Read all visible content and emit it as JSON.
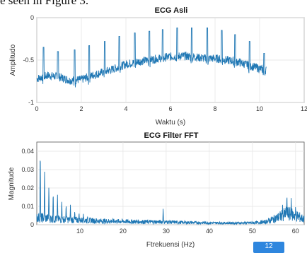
{
  "caption_fragment": "e seen in Figure 3.",
  "page_badge": "12",
  "chart_data": [
    {
      "type": "line",
      "title": "ECG Asli",
      "xlabel": "Waktu (s)",
      "ylabel": "Amplitudo",
      "xlim": [
        0,
        12
      ],
      "ylim": [
        -1,
        0
      ],
      "xticks": [
        0,
        2,
        4,
        6,
        8,
        10,
        12
      ],
      "yticks": [
        -1,
        -0.5,
        0
      ],
      "ytick_labels": [
        "-1",
        "-0.5",
        "0"
      ],
      "grid": true,
      "color": "#1f77b4",
      "series": [
        {
          "x_range": [
            0,
            10.3
          ],
          "baseline_x": [
            0,
            0.5,
            1,
            1.5,
            2,
            2.5,
            3,
            3.5,
            4,
            4.5,
            5,
            5.5,
            6,
            6.5,
            7,
            7.5,
            8,
            8.5,
            9,
            9.5,
            10,
            10.3
          ],
          "baseline_y": [
            -0.72,
            -0.68,
            -0.7,
            -0.74,
            -0.73,
            -0.68,
            -0.64,
            -0.6,
            -0.55,
            -0.52,
            -0.5,
            -0.48,
            -0.46,
            -0.45,
            -0.46,
            -0.48,
            -0.48,
            -0.5,
            -0.52,
            -0.56,
            -0.6,
            -0.62
          ],
          "r_peak_times": [
            0.3,
            0.95,
            1.7,
            2.35,
            3.05,
            3.7,
            4.4,
            5.05,
            5.65,
            6.3,
            6.95,
            7.65,
            8.3,
            8.9,
            9.55,
            10.2
          ],
          "r_peak_values": [
            -0.35,
            -0.4,
            -0.38,
            -0.33,
            -0.28,
            -0.22,
            -0.18,
            -0.16,
            -0.14,
            -0.12,
            -0.12,
            -0.12,
            -0.15,
            -0.2,
            -0.28,
            -0.42
          ]
        }
      ]
    },
    {
      "type": "line",
      "title": "ECG Filter FFT",
      "xlabel": "Ftrekuensi (Hz)",
      "ylabel": "Magnitude",
      "xlim": [
        0,
        62
      ],
      "ylim": [
        0,
        0.045
      ],
      "xticks": [
        10,
        20,
        30,
        40,
        50,
        60
      ],
      "yticks": [
        0,
        0.01,
        0.02,
        0.03,
        0.04
      ],
      "ytick_labels": [
        "0",
        "0.01",
        "0.02",
        "0.03",
        "0.04"
      ],
      "grid": true,
      "color": "#1f77b4",
      "series": [
        {
          "peak_freqs": [
            0.8,
            1.8,
            2.8,
            3.8,
            4.8,
            5.8,
            6.8,
            7.8,
            8.8,
            9.8,
            10.8,
            11.8,
            12.8,
            29.3,
            57.0,
            58.0,
            59.0,
            60.0
          ],
          "peak_values": [
            0.044,
            0.031,
            0.022,
            0.019,
            0.017,
            0.014,
            0.012,
            0.011,
            0.008,
            0.007,
            0.006,
            0.005,
            0.004,
            0.009,
            0.012,
            0.018,
            0.015,
            0.011
          ],
          "noise_floor_freqs": [
            0,
            5,
            10,
            15,
            20,
            25,
            30,
            35,
            40,
            45,
            50,
            53,
            56,
            58,
            60,
            62
          ],
          "noise_floor_values": [
            0.004,
            0.003,
            0.0025,
            0.002,
            0.0018,
            0.0016,
            0.0015,
            0.0012,
            0.001,
            0.0009,
            0.001,
            0.0015,
            0.004,
            0.006,
            0.005,
            0.003
          ]
        }
      ]
    }
  ]
}
